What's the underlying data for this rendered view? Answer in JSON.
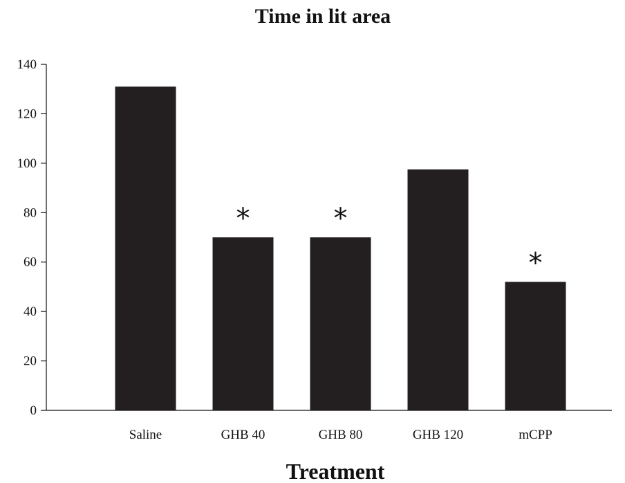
{
  "chart_data": {
    "type": "bar",
    "title": "Time in lit area",
    "xlabel": "Treatment",
    "ylabel": "",
    "categories": [
      "Saline",
      "GHB 40",
      "GHB 80",
      "GHB 120",
      "mCPP"
    ],
    "values": [
      131,
      70,
      70,
      97.5,
      52
    ],
    "annotations": [
      "",
      "*",
      "*",
      "",
      "*"
    ],
    "ylim": [
      0,
      140
    ],
    "yticks": [
      0,
      20,
      40,
      60,
      80,
      100,
      120,
      140
    ],
    "grid": false,
    "legend": "none",
    "bar_color": "#231f20"
  }
}
